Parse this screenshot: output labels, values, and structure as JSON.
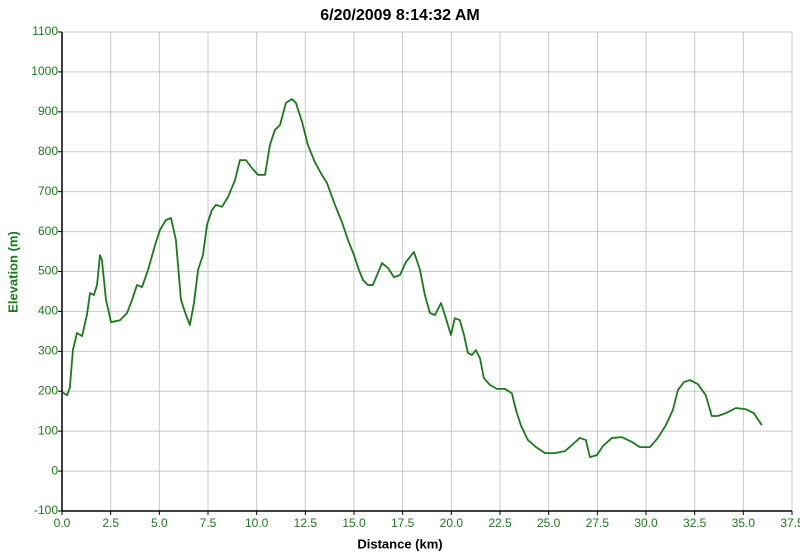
{
  "chart_data": {
    "type": "line",
    "title": "6/20/2009 8:14:32 AM",
    "x_label": "Distance (km)",
    "y_label": "Elevation (m)",
    "color": "#1a7a1a",
    "grid": true,
    "xlim": [
      0,
      37.5
    ],
    "ylim": [
      -100,
      1100
    ],
    "xticks": [
      {
        "value": 0,
        "label": "0.0"
      },
      2.5,
      {
        "value": 5,
        "label": "5.0"
      },
      7.5,
      {
        "value": 10,
        "label": "10.0"
      },
      12.5,
      {
        "value": 15,
        "label": "15.0"
      },
      17.5,
      {
        "value": 20,
        "label": "20.0"
      },
      22.5,
      {
        "value": 25,
        "label": "25.0"
      },
      27.5,
      {
        "value": 30,
        "label": "30.0"
      },
      32.5,
      {
        "value": 35,
        "label": "35.0"
      },
      37.5
    ],
    "yticks": [
      -100,
      0,
      100,
      200,
      300,
      400,
      500,
      600,
      700,
      800,
      900,
      1000,
      1100
    ],
    "x": [
      0,
      0.26,
      0.4,
      0.56,
      0.77,
      1.03,
      1.28,
      1.44,
      1.64,
      1.8,
      1.95,
      2.05,
      2.26,
      2.52,
      2.98,
      3.34,
      3.6,
      3.85,
      4.11,
      4.42,
      4.78,
      5.03,
      5.34,
      5.6,
      5.85,
      6.11,
      6.37,
      6.57,
      6.78,
      6.99,
      7.24,
      7.45,
      7.7,
      7.91,
      8.22,
      8.53,
      8.89,
      9.14,
      9.45,
      9.76,
      10.07,
      10.43,
      10.68,
      10.94,
      11.2,
      11.5,
      11.81,
      12.02,
      12.33,
      12.63,
      12.99,
      13.35,
      13.61,
      14.02,
      14.38,
      14.69,
      15.0,
      15.25,
      15.46,
      15.71,
      15.97,
      16.18,
      16.44,
      16.74,
      17.05,
      17.36,
      17.67,
      18.08,
      18.39,
      18.64,
      18.9,
      19.16,
      19.47,
      19.72,
      19.98,
      20.18,
      20.44,
      20.65,
      20.85,
      21.06,
      21.26,
      21.47,
      21.67,
      21.98,
      22.34,
      22.75,
      23.11,
      23.32,
      23.57,
      23.93,
      24.35,
      24.81,
      25.32,
      25.83,
      26.19,
      26.6,
      26.91,
      27.12,
      27.48,
      27.79,
      28.25,
      28.76,
      29.28,
      29.69,
      30.2,
      30.61,
      31.02,
      31.38,
      31.64,
      31.95,
      32.25,
      32.66,
      33.07,
      33.38,
      33.69,
      34.1,
      34.62,
      35.13,
      35.54,
      35.95
    ],
    "values": [
      198,
      190,
      208,
      303,
      346,
      338,
      391,
      446,
      441,
      466,
      541,
      529,
      429,
      373,
      378,
      396,
      429,
      466,
      461,
      504,
      566,
      604,
      629,
      634,
      579,
      429,
      391,
      366,
      421,
      504,
      541,
      617,
      654,
      667,
      662,
      687,
      729,
      779,
      779,
      759,
      742,
      742,
      817,
      855,
      867,
      922,
      932,
      922,
      875,
      817,
      774,
      742,
      722,
      667,
      624,
      579,
      541,
      504,
      479,
      466,
      466,
      491,
      521,
      509,
      486,
      491,
      524,
      549,
      504,
      441,
      396,
      391,
      421,
      383,
      341,
      383,
      378,
      341,
      296,
      291,
      303,
      283,
      233,
      216,
      206,
      206,
      195,
      153,
      115,
      78,
      60,
      45,
      45,
      50,
      65,
      83,
      78,
      35,
      40,
      63,
      83,
      85,
      73,
      60,
      60,
      83,
      115,
      153,
      203,
      223,
      228,
      218,
      190,
      138,
      138,
      145,
      158,
      155,
      145,
      115
    ]
  }
}
